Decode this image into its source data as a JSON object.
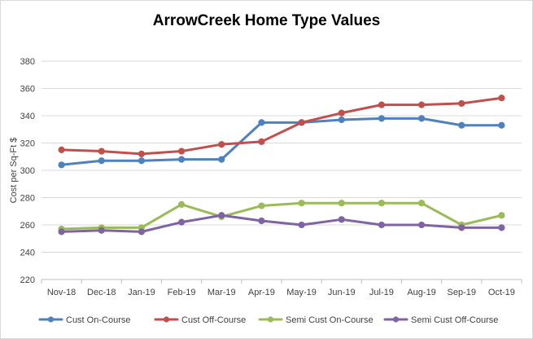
{
  "chart_data": {
    "type": "line",
    "title": "ArrowCreek Home Type Values",
    "xlabel": "",
    "ylabel": "Cost per Sq-Ft $",
    "ylim": [
      220,
      380
    ],
    "yticks": [
      220,
      240,
      260,
      280,
      300,
      320,
      340,
      360,
      380
    ],
    "grid": true,
    "legend_position": "bottom",
    "categories": [
      "Nov-18",
      "Dec-18",
      "Jan-19",
      "Feb-19",
      "Mar-19",
      "Apr-19",
      "May-19",
      "Jun-19",
      "Jul-19",
      "Aug-19",
      "Sep-19",
      "Oct-19"
    ],
    "series": [
      {
        "name": "Cust On-Course",
        "color": "#4f81bd",
        "values": [
          304,
          307,
          307,
          308,
          308,
          335,
          335,
          337,
          338,
          338,
          333,
          333
        ]
      },
      {
        "name": "Cust Off-Course",
        "color": "#c0504d",
        "values": [
          315,
          314,
          312,
          314,
          319,
          321,
          335,
          342,
          348,
          348,
          349,
          353
        ]
      },
      {
        "name": "Semi Cust On-Course",
        "color": "#9bbb59",
        "values": [
          257,
          258,
          258,
          275,
          266,
          274,
          276,
          276,
          276,
          276,
          260,
          267
        ]
      },
      {
        "name": "Semi Cust Off-Course",
        "color": "#8064a2",
        "values": [
          255,
          256,
          255,
          262,
          267,
          263,
          260,
          264,
          260,
          260,
          258,
          258
        ]
      }
    ]
  }
}
